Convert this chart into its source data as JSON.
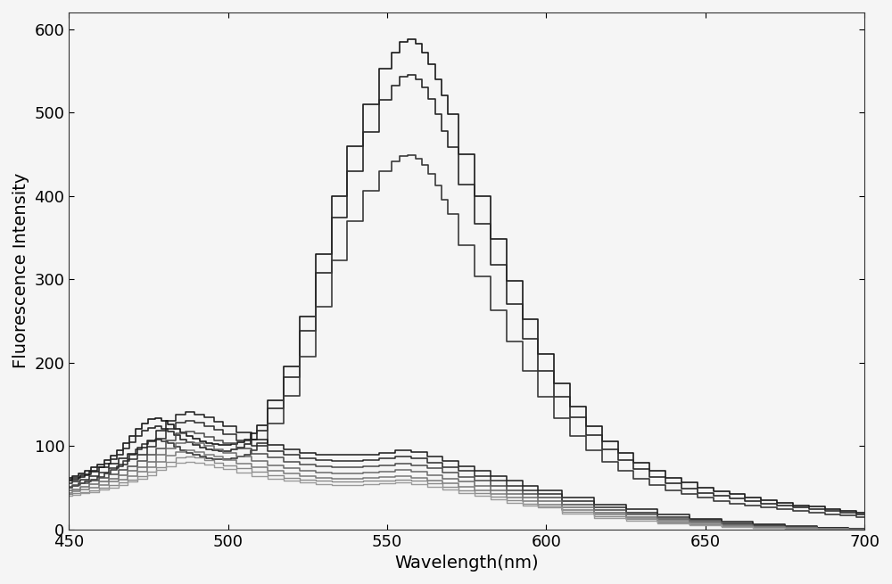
{
  "xlabel": "Wavelength(nm)",
  "ylabel": "Fluorescence Intensity",
  "xlim": [
    450,
    700
  ],
  "ylim": [
    0,
    620
  ],
  "xticks": [
    450,
    500,
    550,
    600,
    650,
    700
  ],
  "yticks": [
    0,
    100,
    200,
    300,
    400,
    500,
    600
  ],
  "background_color": "#f5f5f5",
  "axis_fontsize": 14,
  "tick_fontsize": 13,
  "curves": [
    {
      "name": "c1_top",
      "color": "#1a1a1a",
      "lw": 1.2,
      "points_x": [
        450,
        452,
        454,
        456,
        458,
        460,
        462,
        464,
        466,
        468,
        470,
        472,
        474,
        476,
        478,
        480,
        482,
        484,
        486,
        488,
        490,
        492,
        494,
        496,
        498,
        500,
        502,
        504,
        506,
        508,
        510,
        515,
        520,
        525,
        530,
        535,
        540,
        545,
        550,
        553,
        555,
        558,
        560,
        562,
        564,
        566,
        568,
        570,
        575,
        580,
        585,
        590,
        595,
        600,
        605,
        610,
        615,
        620,
        625,
        630,
        635,
        640,
        645,
        650,
        655,
        660,
        665,
        670,
        675,
        680,
        685,
        690,
        695,
        700
      ],
      "points_y": [
        62,
        64,
        67,
        70,
        74,
        78,
        83,
        88,
        95,
        103,
        112,
        120,
        127,
        132,
        133,
        130,
        126,
        121,
        116,
        112,
        109,
        106,
        103,
        102,
        101,
        101,
        102,
        104,
        108,
        115,
        125,
        155,
        195,
        255,
        330,
        400,
        460,
        510,
        552,
        572,
        585,
        588,
        582,
        572,
        558,
        540,
        520,
        498,
        450,
        400,
        348,
        298,
        252,
        210,
        175,
        147,
        124,
        106,
        92,
        80,
        70,
        62,
        56,
        50,
        46,
        42,
        38,
        35,
        32,
        29,
        27,
        24,
        22,
        20
      ]
    },
    {
      "name": "c2_second",
      "color": "#2a2a2a",
      "lw": 1.2,
      "points_x": [
        450,
        452,
        454,
        456,
        458,
        460,
        462,
        464,
        466,
        468,
        470,
        472,
        474,
        476,
        478,
        480,
        482,
        484,
        486,
        488,
        490,
        492,
        494,
        496,
        498,
        500,
        502,
        504,
        506,
        508,
        510,
        515,
        520,
        525,
        530,
        535,
        540,
        545,
        550,
        553,
        555,
        558,
        560,
        562,
        564,
        566,
        568,
        570,
        575,
        580,
        585,
        590,
        595,
        600,
        605,
        610,
        615,
        620,
        625,
        630,
        635,
        640,
        645,
        650,
        655,
        660,
        665,
        670,
        675,
        680,
        685,
        690,
        695,
        700
      ],
      "points_y": [
        58,
        60,
        63,
        66,
        70,
        74,
        79,
        84,
        90,
        97,
        105,
        112,
        118,
        122,
        124,
        121,
        117,
        113,
        108,
        104,
        101,
        98,
        96,
        95,
        94,
        94,
        96,
        98,
        102,
        108,
        118,
        145,
        183,
        238,
        308,
        374,
        430,
        477,
        515,
        532,
        543,
        545,
        540,
        530,
        516,
        498,
        478,
        458,
        413,
        366,
        317,
        270,
        228,
        190,
        159,
        134,
        113,
        96,
        83,
        72,
        63,
        55,
        49,
        44,
        40,
        37,
        34,
        31,
        29,
        26,
        24,
        22,
        20,
        18
      ]
    },
    {
      "name": "c3_third",
      "color": "#3a3a3a",
      "lw": 1.2,
      "points_x": [
        450,
        452,
        454,
        456,
        458,
        460,
        462,
        464,
        466,
        468,
        470,
        472,
        474,
        476,
        478,
        480,
        482,
        484,
        486,
        488,
        490,
        492,
        494,
        496,
        498,
        500,
        502,
        504,
        506,
        508,
        510,
        515,
        520,
        525,
        530,
        535,
        540,
        545,
        550,
        553,
        555,
        558,
        560,
        562,
        564,
        566,
        568,
        570,
        575,
        580,
        585,
        590,
        595,
        600,
        605,
        610,
        615,
        620,
        625,
        630,
        635,
        640,
        645,
        650,
        655,
        660,
        665,
        670,
        675,
        680,
        685,
        690,
        695,
        700
      ],
      "points_y": [
        50,
        52,
        55,
        57,
        60,
        63,
        67,
        71,
        76,
        82,
        89,
        96,
        102,
        106,
        108,
        106,
        103,
        99,
        95,
        92,
        89,
        87,
        85,
        84,
        84,
        84,
        85,
        87,
        90,
        95,
        103,
        127,
        160,
        207,
        267,
        323,
        370,
        406,
        430,
        441,
        448,
        449,
        445,
        437,
        426,
        412,
        395,
        378,
        341,
        303,
        263,
        225,
        190,
        159,
        133,
        112,
        95,
        81,
        70,
        61,
        53,
        47,
        42,
        38,
        34,
        31,
        29,
        26,
        24,
        22,
        20,
        18,
        17,
        15
      ]
    },
    {
      "name": "c4_fourth",
      "color": "#1a1a1a",
      "lw": 1.1,
      "points_x": [
        450,
        452,
        455,
        458,
        461,
        464,
        467,
        470,
        473,
        476,
        479,
        482,
        485,
        488,
        491,
        494,
        497,
        500,
        505,
        510,
        515,
        520,
        525,
        530,
        535,
        540,
        545,
        550,
        555,
        560,
        565,
        570,
        575,
        580,
        585,
        590,
        595,
        600,
        610,
        620,
        630,
        640,
        650,
        660,
        670,
        680,
        690,
        700
      ],
      "points_y": [
        60,
        62,
        65,
        69,
        74,
        79,
        85,
        91,
        98,
        107,
        118,
        130,
        138,
        141,
        138,
        134,
        129,
        124,
        116,
        108,
        101,
        96,
        92,
        90,
        89,
        89,
        90,
        92,
        95,
        93,
        87,
        82,
        76,
        70,
        64,
        58,
        52,
        47,
        38,
        30,
        24,
        18,
        13,
        9,
        6,
        4,
        2,
        1
      ]
    },
    {
      "name": "c5_fifth",
      "color": "#2a2a2a",
      "lw": 1.1,
      "points_x": [
        450,
        452,
        455,
        458,
        461,
        464,
        467,
        470,
        473,
        476,
        479,
        482,
        485,
        488,
        491,
        494,
        497,
        500,
        505,
        510,
        515,
        520,
        525,
        530,
        535,
        540,
        545,
        550,
        555,
        560,
        565,
        570,
        575,
        580,
        585,
        590,
        595,
        600,
        610,
        620,
        630,
        640,
        650,
        660,
        670,
        680,
        690,
        700
      ],
      "points_y": [
        55,
        57,
        60,
        64,
        68,
        73,
        78,
        84,
        90,
        99,
        109,
        120,
        128,
        130,
        128,
        124,
        119,
        114,
        107,
        100,
        94,
        89,
        85,
        83,
        82,
        82,
        83,
        85,
        87,
        85,
        80,
        75,
        70,
        64,
        58,
        52,
        47,
        42,
        34,
        26,
        20,
        15,
        11,
        7,
        5,
        3,
        2,
        1
      ]
    },
    {
      "name": "c6_sixth",
      "color": "#4a4a4a",
      "lw": 1.1,
      "points_x": [
        450,
        452,
        455,
        458,
        461,
        464,
        467,
        470,
        473,
        476,
        479,
        482,
        485,
        488,
        491,
        494,
        497,
        500,
        505,
        510,
        515,
        520,
        525,
        530,
        535,
        540,
        545,
        550,
        555,
        560,
        565,
        570,
        575,
        580,
        585,
        590,
        595,
        600,
        610,
        620,
        630,
        640,
        650,
        660,
        670,
        680,
        690,
        700
      ],
      "points_y": [
        51,
        53,
        55,
        58,
        62,
        66,
        71,
        76,
        82,
        89,
        97,
        107,
        115,
        117,
        115,
        111,
        107,
        103,
        97,
        91,
        86,
        81,
        78,
        76,
        75,
        75,
        76,
        77,
        79,
        77,
        73,
        68,
        63,
        58,
        52,
        47,
        42,
        38,
        30,
        23,
        18,
        13,
        9,
        6,
        4,
        3,
        1,
        1
      ]
    },
    {
      "name": "c7_seventh",
      "color": "#6a6a6a",
      "lw": 1.1,
      "points_x": [
        450,
        452,
        455,
        458,
        461,
        464,
        467,
        470,
        473,
        476,
        479,
        482,
        485,
        488,
        491,
        494,
        497,
        500,
        505,
        510,
        515,
        520,
        525,
        530,
        535,
        540,
        545,
        550,
        555,
        560,
        565,
        570,
        575,
        580,
        585,
        590,
        595,
        600,
        610,
        620,
        630,
        640,
        650,
        660,
        670,
        680,
        690,
        700
      ],
      "points_y": [
        47,
        48,
        51,
        54,
        57,
        61,
        65,
        70,
        75,
        81,
        89,
        97,
        103,
        105,
        103,
        100,
        96,
        92,
        87,
        82,
        77,
        73,
        70,
        68,
        67,
        67,
        68,
        69,
        71,
        69,
        65,
        61,
        57,
        52,
        47,
        42,
        38,
        34,
        26,
        20,
        15,
        11,
        8,
        5,
        3,
        2,
        1,
        0
      ]
    },
    {
      "name": "c8_eighth",
      "color": "#7a7a7a",
      "lw": 1.1,
      "points_x": [
        450,
        452,
        455,
        458,
        461,
        464,
        467,
        470,
        473,
        476,
        479,
        482,
        485,
        488,
        491,
        494,
        497,
        500,
        505,
        510,
        515,
        520,
        525,
        530,
        535,
        540,
        545,
        550,
        555,
        560,
        565,
        570,
        575,
        580,
        585,
        590,
        595,
        600,
        610,
        620,
        630,
        640,
        650,
        660,
        670,
        680,
        690,
        700
      ],
      "points_y": [
        44,
        46,
        48,
        50,
        53,
        57,
        60,
        64,
        69,
        74,
        81,
        88,
        93,
        95,
        93,
        90,
        87,
        83,
        79,
        74,
        70,
        67,
        64,
        62,
        61,
        61,
        62,
        63,
        64,
        62,
        59,
        55,
        51,
        47,
        42,
        38,
        34,
        30,
        23,
        18,
        13,
        9,
        6,
        4,
        3,
        2,
        1,
        0
      ]
    },
    {
      "name": "c9_ninth",
      "color": "#8a8a8a",
      "lw": 1.0,
      "points_x": [
        450,
        452,
        455,
        458,
        461,
        464,
        467,
        470,
        473,
        476,
        479,
        482,
        485,
        488,
        491,
        494,
        497,
        500,
        505,
        510,
        515,
        520,
        525,
        530,
        535,
        540,
        545,
        550,
        555,
        560,
        565,
        570,
        575,
        580,
        585,
        590,
        595,
        600,
        610,
        620,
        630,
        640,
        650,
        660,
        670,
        680,
        690,
        700
      ],
      "points_y": [
        42,
        43,
        45,
        47,
        50,
        53,
        56,
        60,
        64,
        69,
        75,
        81,
        86,
        87,
        86,
        83,
        80,
        77,
        73,
        69,
        65,
        62,
        60,
        58,
        57,
        57,
        58,
        59,
        60,
        58,
        55,
        51,
        47,
        43,
        39,
        35,
        31,
        28,
        21,
        16,
        12,
        8,
        6,
        4,
        2,
        1,
        1,
        0
      ]
    },
    {
      "name": "c10_tenth",
      "color": "#9a9a9a",
      "lw": 1.0,
      "points_x": [
        450,
        452,
        455,
        458,
        461,
        464,
        467,
        470,
        473,
        476,
        479,
        482,
        485,
        488,
        491,
        494,
        497,
        500,
        505,
        510,
        515,
        520,
        525,
        530,
        535,
        540,
        545,
        550,
        555,
        560,
        565,
        570,
        575,
        580,
        585,
        590,
        595,
        600,
        610,
        620,
        630,
        640,
        650,
        660,
        670,
        680,
        690,
        700
      ],
      "points_y": [
        40,
        41,
        43,
        45,
        48,
        50,
        53,
        57,
        61,
        65,
        71,
        76,
        80,
        81,
        80,
        78,
        75,
        72,
        68,
        64,
        61,
        58,
        56,
        54,
        53,
        53,
        54,
        55,
        56,
        54,
        51,
        48,
        44,
        40,
        36,
        32,
        29,
        26,
        19,
        14,
        10,
        7,
        5,
        3,
        2,
        1,
        0,
        0
      ]
    }
  ]
}
